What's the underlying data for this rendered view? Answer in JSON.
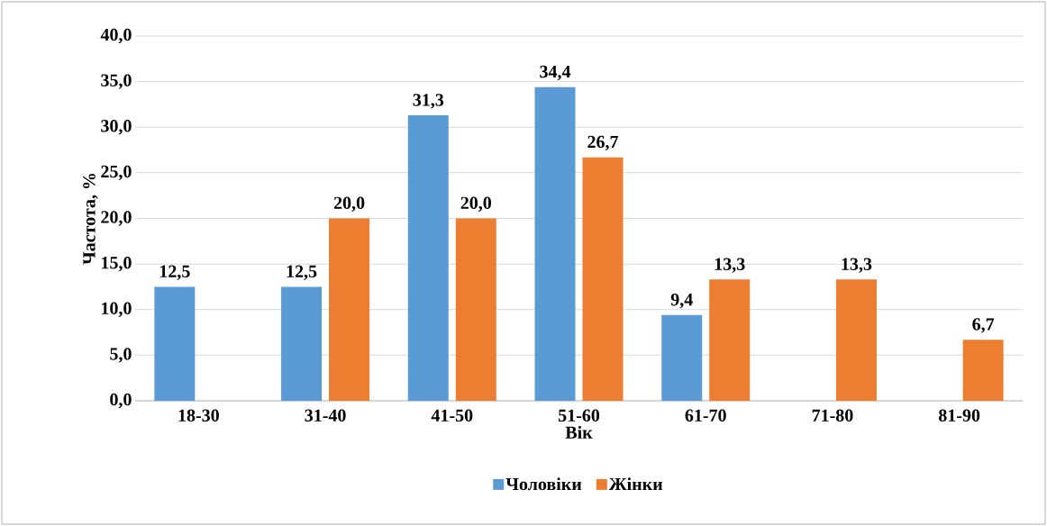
{
  "chart_data": {
    "type": "bar",
    "xlabel": "Вік",
    "ylabel": "Частота, %",
    "categories": [
      "18-30",
      "31-40",
      "41-50",
      "51-60",
      "61-70",
      "71-80",
      "81-90"
    ],
    "series": [
      {
        "name": "Чоловіки",
        "color": "#5b9bd5",
        "values": [
          12.5,
          12.5,
          31.3,
          34.4,
          9.4,
          null,
          null
        ],
        "value_labels": [
          "12,5",
          "12,5",
          "31,3",
          "34,4",
          "9,4",
          null,
          null
        ]
      },
      {
        "name": "Жінки",
        "color": "#ed7d31",
        "values": [
          null,
          20.0,
          20.0,
          26.7,
          13.3,
          13.3,
          6.7
        ],
        "value_labels": [
          null,
          "20,0",
          "20,0",
          "26,7",
          "13,3",
          "13,3",
          "6,7"
        ]
      }
    ],
    "ylim": [
      0,
      40
    ],
    "yticks": [
      {
        "value": 0,
        "label": "0,0"
      },
      {
        "value": 5,
        "label": "5,0"
      },
      {
        "value": 10,
        "label": "10,0"
      },
      {
        "value": 15,
        "label": "15,0"
      },
      {
        "value": 20,
        "label": "20,0"
      },
      {
        "value": 25,
        "label": "25,0"
      },
      {
        "value": 30,
        "label": "30,0"
      },
      {
        "value": 35,
        "label": "35,0"
      },
      {
        "value": 40,
        "label": "40,0"
      }
    ],
    "grid": "y",
    "legend": "bottom"
  }
}
